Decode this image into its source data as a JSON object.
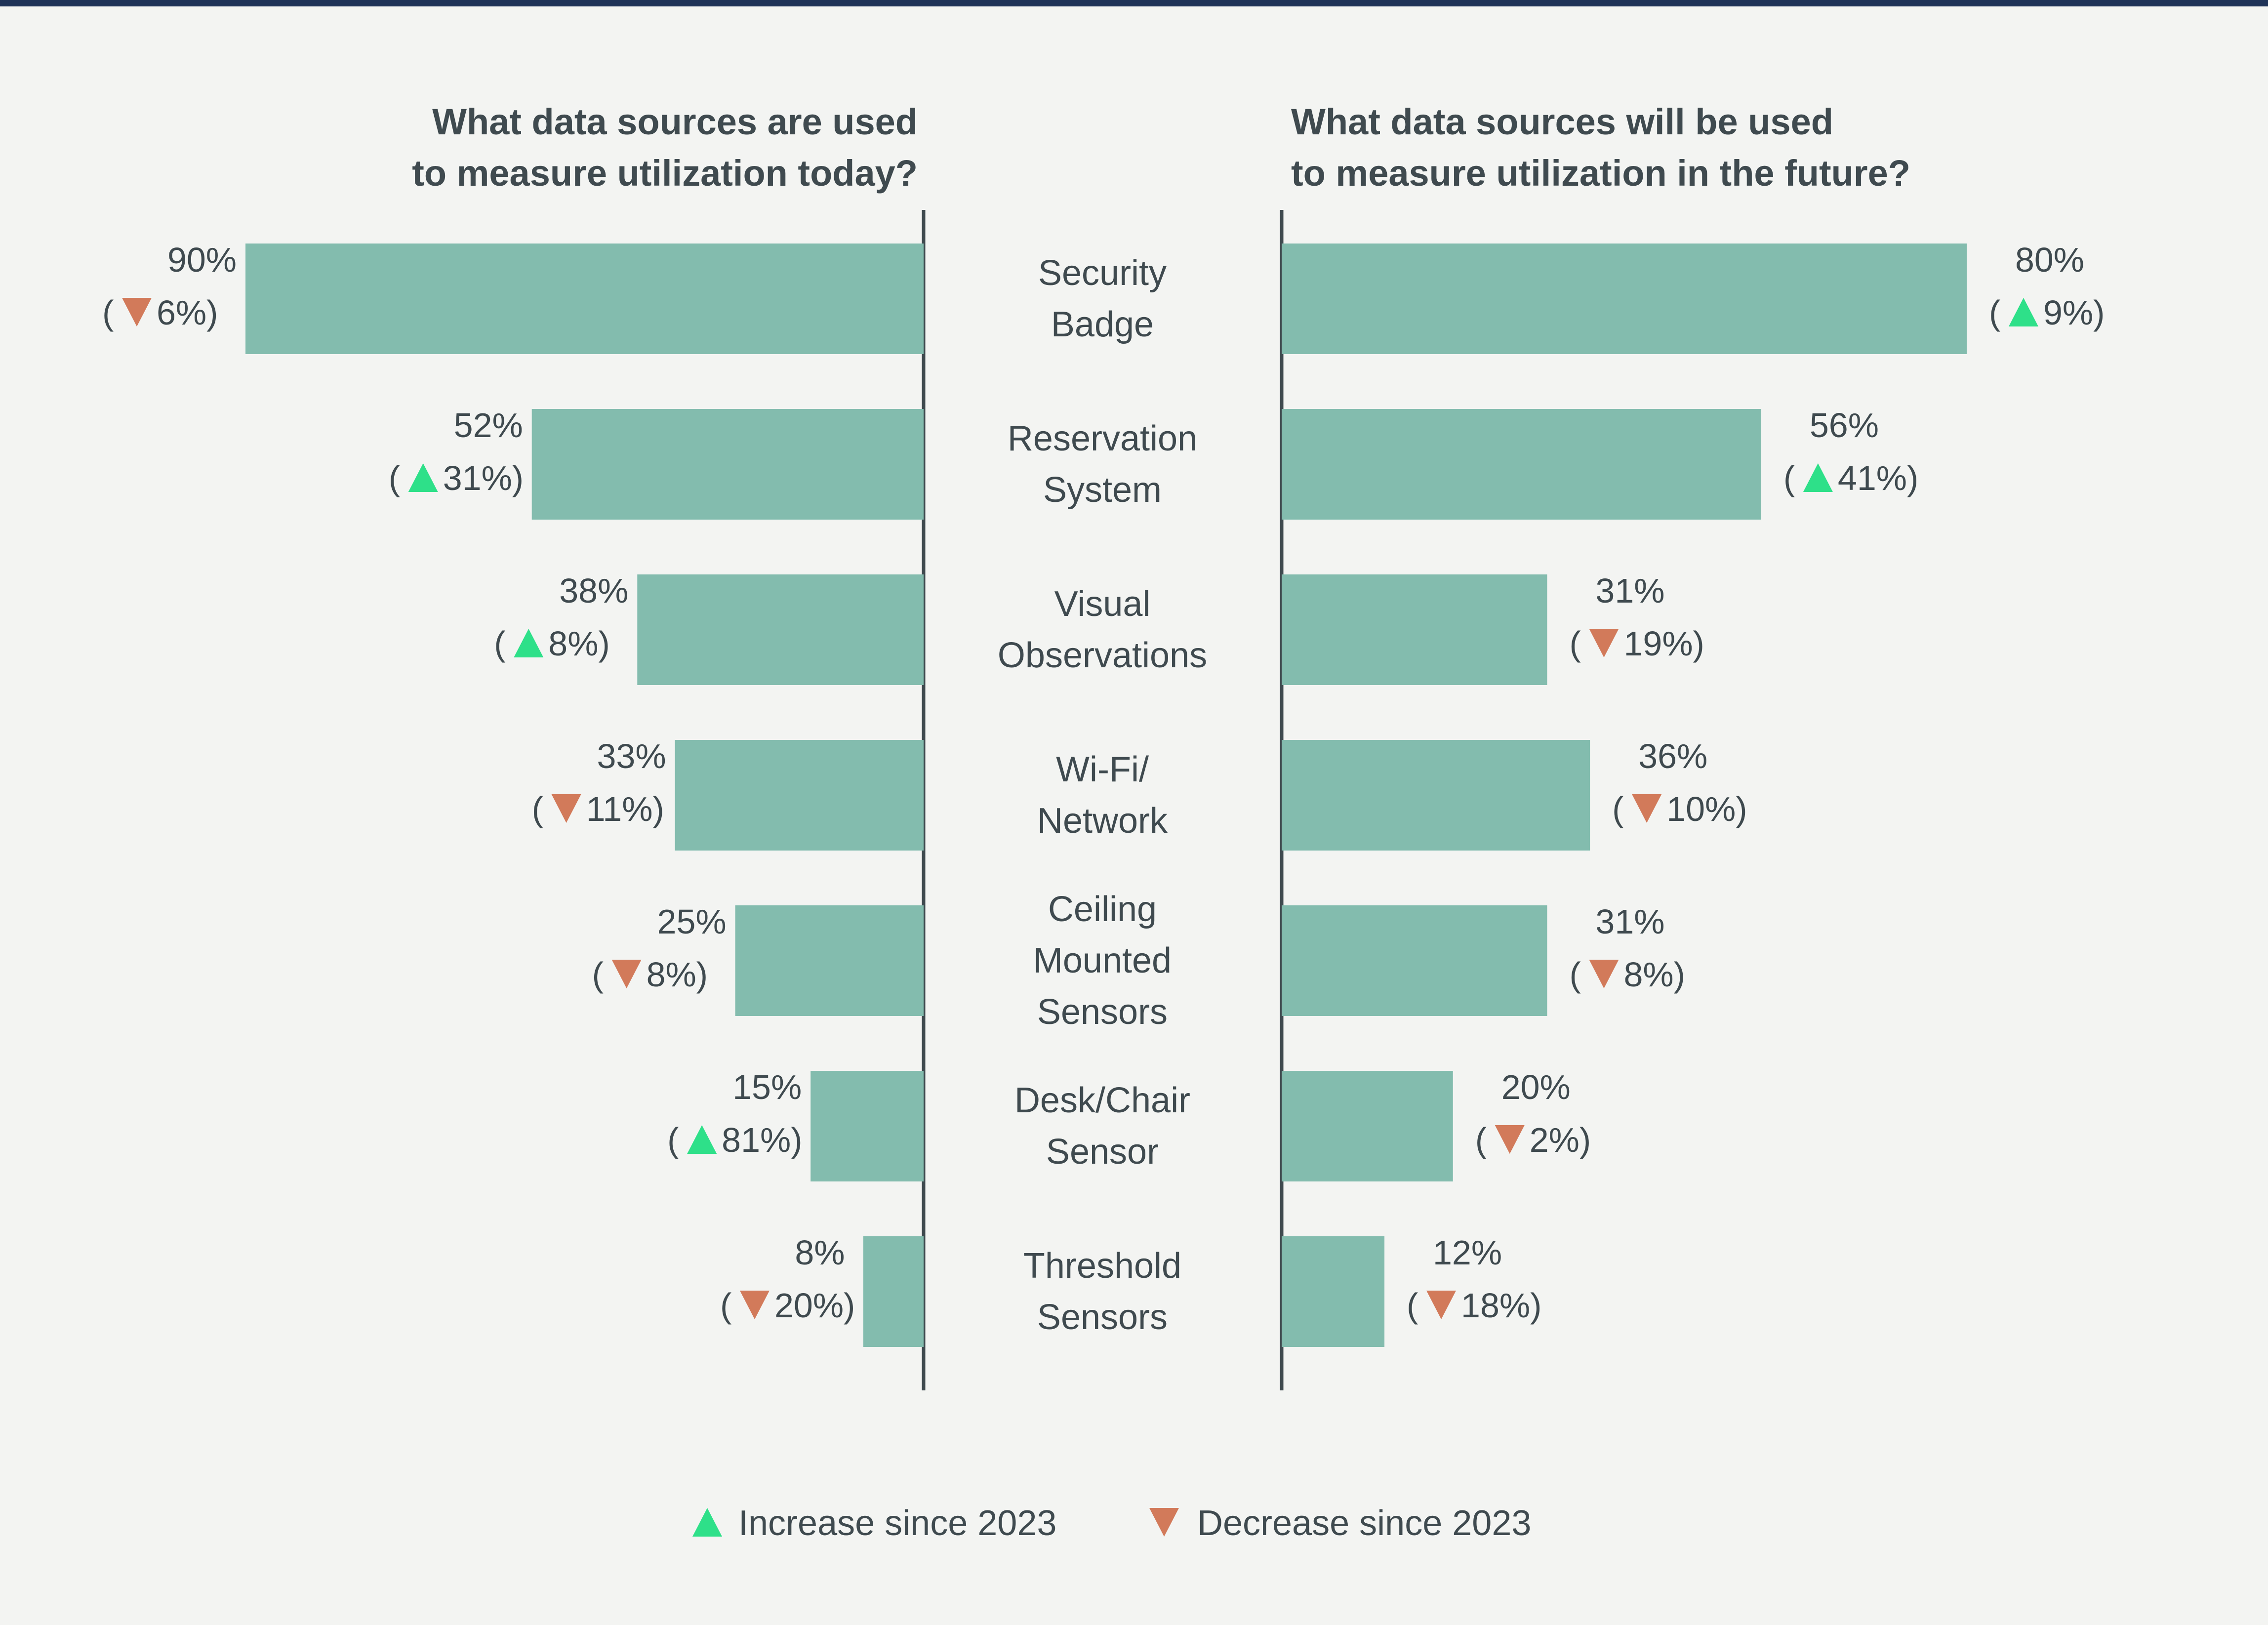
{
  "colors": {
    "bar": "#83bcae",
    "axis": "#3f4a4f",
    "increase": "#2ee089",
    "decrease": "#d27a5a",
    "text": "#3f4a4f",
    "top_rule": "#1f3358",
    "background": "#f3f4f2"
  },
  "chart_data": [
    {
      "type": "bar",
      "orientation": "horizontal",
      "direction": "leftward",
      "title": [
        "What data sources are used",
        "to measure utilization today?"
      ],
      "categories": [
        [
          "Security",
          "Badge"
        ],
        [
          "Reservation",
          "System"
        ],
        [
          "Visual",
          "Observations"
        ],
        [
          "Wi-Fi/",
          "Network"
        ],
        [
          "Ceiling",
          "Mounted",
          "Sensors"
        ],
        [
          "Desk/Chair",
          "Sensor"
        ],
        [
          "Threshold",
          "Sensors"
        ]
      ],
      "values": [
        90,
        52,
        38,
        33,
        25,
        15,
        8
      ],
      "value_labels": [
        "90%",
        "52%",
        "38%",
        "33%",
        "25%",
        "15%",
        "8%"
      ],
      "change_direction": [
        "down",
        "up",
        "up",
        "down",
        "down",
        "up",
        "down"
      ],
      "change_labels": [
        "6%)",
        "31%)",
        "8%)",
        "11%)",
        "8%)",
        "81%)",
        "20%)"
      ],
      "unit": "%",
      "xlim": [
        0,
        90
      ],
      "grid": false
    },
    {
      "type": "bar",
      "orientation": "horizontal",
      "direction": "rightward",
      "title": [
        "What data sources will be used",
        "to measure utilization in the future?"
      ],
      "categories": [
        [
          "Security",
          "Badge"
        ],
        [
          "Reservation",
          "System"
        ],
        [
          "Visual",
          "Observations"
        ],
        [
          "Wi-Fi/",
          "Network"
        ],
        [
          "Ceiling",
          "Mounted",
          "Sensors"
        ],
        [
          "Desk/Chair",
          "Sensor"
        ],
        [
          "Threshold",
          "Sensors"
        ]
      ],
      "values": [
        80,
        56,
        31,
        36,
        31,
        20,
        12
      ],
      "value_labels": [
        "80%",
        "56%",
        "31%",
        "36%",
        "31%",
        "20%",
        "12%"
      ],
      "change_direction": [
        "up",
        "up",
        "down",
        "down",
        "down",
        "down",
        "down"
      ],
      "change_labels": [
        "9%)",
        "41%)",
        "19%)",
        "10%)",
        "8%)",
        "2%)",
        "18%)"
      ],
      "unit": "%",
      "xlim": [
        0,
        80
      ],
      "grid": false
    }
  ],
  "legend": {
    "placement": "bottom-center",
    "items": [
      {
        "marker": "triangle-up-icon",
        "label": "Increase since 2023"
      },
      {
        "marker": "triangle-down-icon",
        "label": "Decrease since 2023"
      }
    ]
  }
}
